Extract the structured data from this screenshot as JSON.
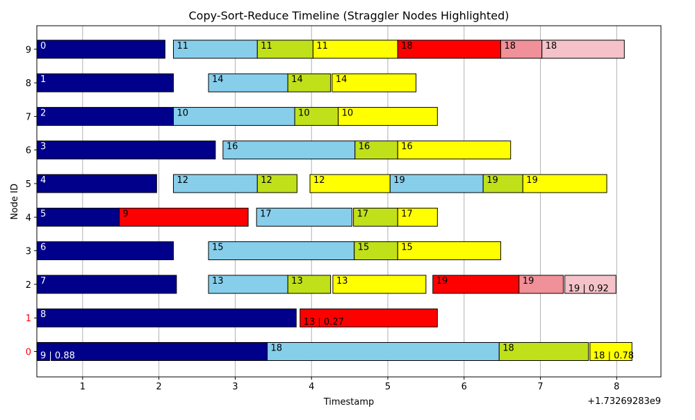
{
  "chart_data": {
    "type": "gantt",
    "title": "Copy-Sort-Reduce Timeline (Straggler Nodes Highlighted)",
    "xlabel": "Timestamp",
    "ylabel": "Node ID",
    "offset_label": "+1.73269283e9",
    "xlim": [
      0.4,
      8.58
    ],
    "x_ticks": [
      "1",
      "2",
      "3",
      "4",
      "5",
      "6",
      "7",
      "8"
    ],
    "y_ticks": [
      "0",
      "1",
      "2",
      "3",
      "4",
      "5",
      "6",
      "7",
      "8",
      "9"
    ],
    "straggler_nodes": [
      0,
      1
    ],
    "straggler_color": "#ff0000",
    "grid": "x",
    "colors": {
      "initial": "#00008b",
      "copy": "#87ceeb",
      "sort": "#c0e01a",
      "reduce": "#ffff00",
      "straggler_copy": "#ff0000",
      "straggler_sort": "#f09098",
      "straggler_reduce": "#f4c2c8"
    },
    "tasks": [
      {
        "node": 0,
        "start": 0.4,
        "end": 3.42,
        "kind": "initial",
        "label": "9 | 0.88"
      },
      {
        "node": 0,
        "start": 3.42,
        "end": 6.46,
        "kind": "copy",
        "label": "18"
      },
      {
        "node": 0,
        "start": 6.46,
        "end": 7.63,
        "kind": "sort",
        "label": "18"
      },
      {
        "node": 0,
        "start": 7.65,
        "end": 8.2,
        "kind": "reduce",
        "label": "18 | 0.78"
      },
      {
        "node": 1,
        "start": 0.4,
        "end": 3.8,
        "kind": "initial",
        "label": "8"
      },
      {
        "node": 1,
        "start": 3.85,
        "end": 5.65,
        "kind": "straggler_copy",
        "label": "13 | 0.27"
      },
      {
        "node": 2,
        "start": 0.4,
        "end": 2.23,
        "kind": "initial",
        "label": "7"
      },
      {
        "node": 2,
        "start": 2.65,
        "end": 3.69,
        "kind": "copy",
        "label": "13"
      },
      {
        "node": 2,
        "start": 3.69,
        "end": 4.25,
        "kind": "sort",
        "label": "13"
      },
      {
        "node": 2,
        "start": 4.28,
        "end": 5.5,
        "kind": "reduce",
        "label": "13"
      },
      {
        "node": 2,
        "start": 5.59,
        "end": 6.72,
        "kind": "straggler_copy",
        "label": "19"
      },
      {
        "node": 2,
        "start": 6.72,
        "end": 7.3,
        "kind": "straggler_sort",
        "label": "19"
      },
      {
        "node": 2,
        "start": 7.32,
        "end": 7.99,
        "kind": "straggler_reduce",
        "label": "19 | 0.92"
      },
      {
        "node": 3,
        "start": 0.4,
        "end": 2.19,
        "kind": "initial",
        "label": "6"
      },
      {
        "node": 3,
        "start": 2.65,
        "end": 4.56,
        "kind": "copy",
        "label": "15"
      },
      {
        "node": 3,
        "start": 4.56,
        "end": 5.13,
        "kind": "sort",
        "label": "15"
      },
      {
        "node": 3,
        "start": 5.13,
        "end": 6.48,
        "kind": "reduce",
        "label": "15"
      },
      {
        "node": 4,
        "start": 0.4,
        "end": 1.48,
        "kind": "initial",
        "label": "5"
      },
      {
        "node": 4,
        "start": 1.48,
        "end": 3.17,
        "kind": "straggler_copy",
        "label": "9"
      },
      {
        "node": 4,
        "start": 3.28,
        "end": 4.53,
        "kind": "copy",
        "label": "17"
      },
      {
        "node": 4,
        "start": 4.55,
        "end": 5.13,
        "kind": "sort",
        "label": "17"
      },
      {
        "node": 4,
        "start": 5.13,
        "end": 5.65,
        "kind": "reduce",
        "label": "17"
      },
      {
        "node": 5,
        "start": 0.4,
        "end": 1.97,
        "kind": "initial",
        "label": "4"
      },
      {
        "node": 5,
        "start": 2.19,
        "end": 3.29,
        "kind": "copy",
        "label": "12"
      },
      {
        "node": 5,
        "start": 3.29,
        "end": 3.81,
        "kind": "sort",
        "label": "12"
      },
      {
        "node": 5,
        "start": 3.98,
        "end": 5.03,
        "kind": "reduce",
        "label": "12"
      },
      {
        "node": 5,
        "start": 5.03,
        "end": 6.25,
        "kind": "copy",
        "label": "19"
      },
      {
        "node": 5,
        "start": 6.25,
        "end": 6.77,
        "kind": "sort",
        "label": "19"
      },
      {
        "node": 5,
        "start": 6.77,
        "end": 7.87,
        "kind": "reduce",
        "label": "19"
      },
      {
        "node": 6,
        "start": 0.4,
        "end": 2.74,
        "kind": "initial",
        "label": "3"
      },
      {
        "node": 6,
        "start": 2.84,
        "end": 4.57,
        "kind": "copy",
        "label": "16"
      },
      {
        "node": 6,
        "start": 4.57,
        "end": 5.13,
        "kind": "sort",
        "label": "16"
      },
      {
        "node": 6,
        "start": 5.13,
        "end": 6.61,
        "kind": "reduce",
        "label": "16"
      },
      {
        "node": 7,
        "start": 0.4,
        "end": 2.19,
        "kind": "initial",
        "label": "2"
      },
      {
        "node": 7,
        "start": 2.19,
        "end": 3.78,
        "kind": "copy",
        "label": "10"
      },
      {
        "node": 7,
        "start": 3.78,
        "end": 4.35,
        "kind": "sort",
        "label": "10"
      },
      {
        "node": 7,
        "start": 4.35,
        "end": 5.65,
        "kind": "reduce",
        "label": "10"
      },
      {
        "node": 8,
        "start": 0.4,
        "end": 2.19,
        "kind": "initial",
        "label": "1"
      },
      {
        "node": 8,
        "start": 2.65,
        "end": 3.69,
        "kind": "copy",
        "label": "14"
      },
      {
        "node": 8,
        "start": 3.69,
        "end": 4.25,
        "kind": "sort",
        "label": "14"
      },
      {
        "node": 8,
        "start": 4.27,
        "end": 5.37,
        "kind": "reduce",
        "label": "14"
      },
      {
        "node": 9,
        "start": 0.4,
        "end": 2.08,
        "kind": "initial",
        "label": "0"
      },
      {
        "node": 9,
        "start": 2.19,
        "end": 3.29,
        "kind": "copy",
        "label": "11"
      },
      {
        "node": 9,
        "start": 3.29,
        "end": 4.02,
        "kind": "sort",
        "label": "11"
      },
      {
        "node": 9,
        "start": 4.02,
        "end": 5.13,
        "kind": "reduce",
        "label": "11"
      },
      {
        "node": 9,
        "start": 5.13,
        "end": 6.48,
        "kind": "straggler_copy",
        "label": "18"
      },
      {
        "node": 9,
        "start": 6.48,
        "end": 7.02,
        "kind": "straggler_sort",
        "label": "18"
      },
      {
        "node": 9,
        "start": 7.02,
        "end": 8.1,
        "kind": "straggler_reduce",
        "label": "18"
      }
    ]
  }
}
